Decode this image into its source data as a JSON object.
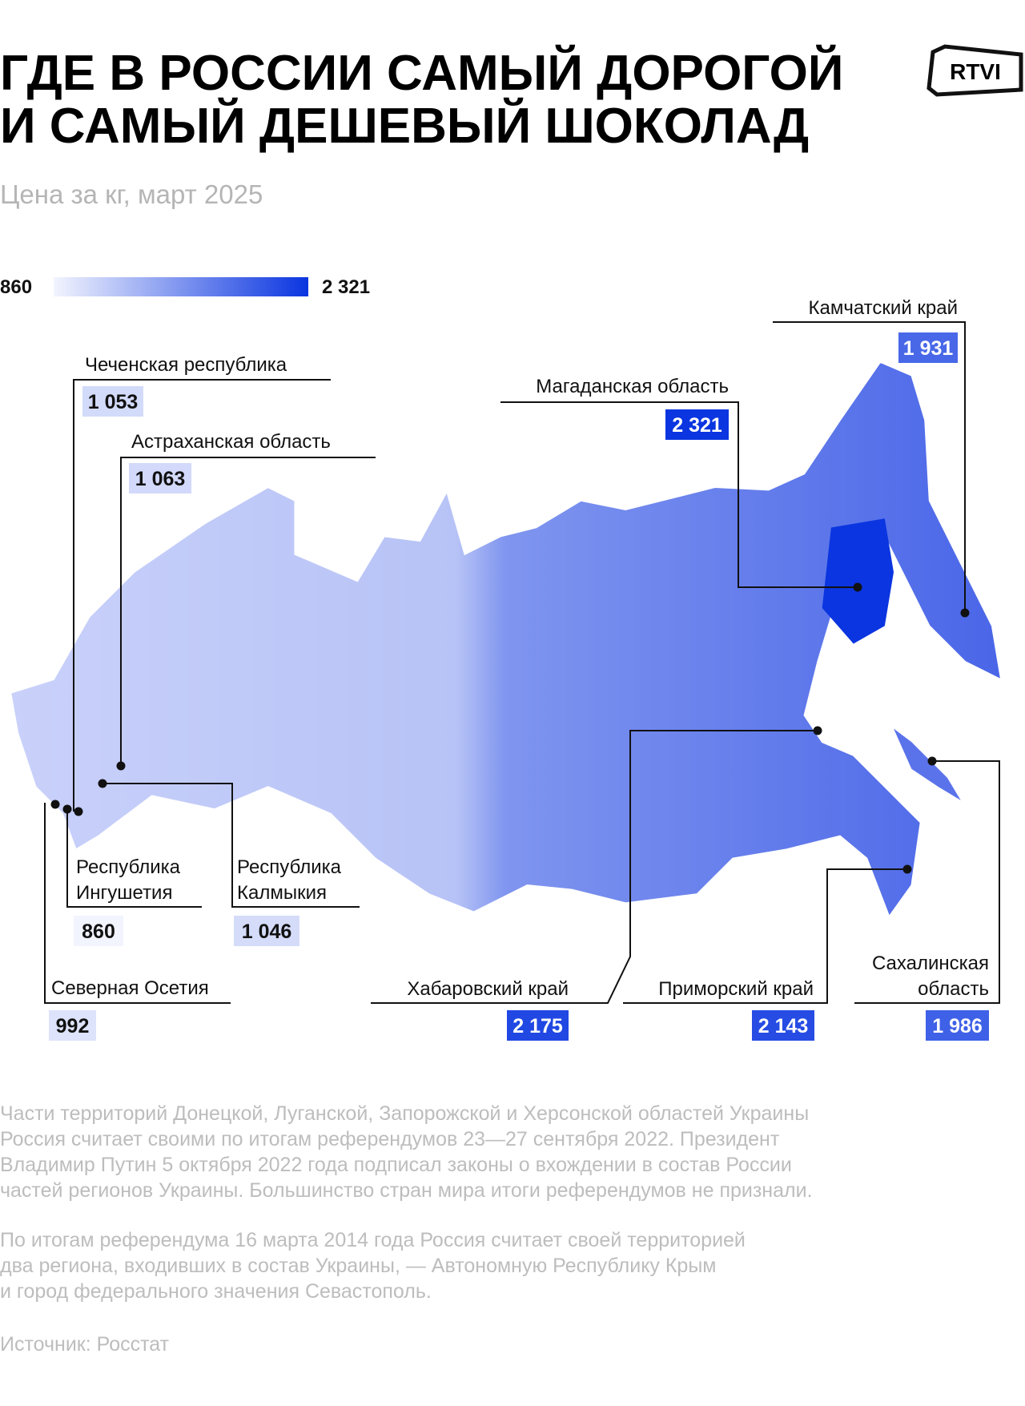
{
  "header": {
    "title": [
      "ГДЕ В РОССИИ САМЫЙ ДОРОГОЙ",
      "И САМЫЙ ДЕШЕВЫЙ ШОКОЛАД"
    ],
    "subtitle": "Цена за кг, март 2025",
    "logo": "RTVI"
  },
  "legend": {
    "min": 860,
    "max": {
      "value": 2321,
      "label": "2 321"
    },
    "colors": [
      "#f2f4fe",
      "#0a35e0"
    ]
  },
  "regions": [
    {
      "name": [
        "Камчатский край"
      ],
      "value": 1931,
      "value_label": "1 931"
    },
    {
      "name": [
        "Магаданская область"
      ],
      "value": 2321,
      "value_label": "2 321"
    },
    {
      "name": [
        "Чеченская республика"
      ],
      "value": 1053,
      "value_label": "1 053"
    },
    {
      "name": [
        "Астраханская область"
      ],
      "value": 1063,
      "value_label": "1 063"
    },
    {
      "name": [
        "Республика",
        "Ингушетия"
      ],
      "value": 860,
      "value_label": "860"
    },
    {
      "name": [
        "Республика",
        "Калмыкия"
      ],
      "value": 1046,
      "value_label": "1 046"
    },
    {
      "name": [
        "Северная Осетия"
      ],
      "value": 992,
      "value_label": "992"
    },
    {
      "name": [
        "Хабаровский край"
      ],
      "value": 2175,
      "value_label": "2 175"
    },
    {
      "name": [
        "Приморский край"
      ],
      "value": 2143,
      "value_label": "2 143"
    },
    {
      "name": [
        "Сахалинская",
        "область"
      ],
      "value": 1986,
      "value_label": "1 986"
    }
  ],
  "notes": [
    [
      "Части территорий Донецкой, Луганской, Запорожской и Херсонской областей Украины",
      "Россия считает своими по итогам референдумов 23—27 сентября 2022. Президент",
      "Владимир Путин 5 октября 2022 года подписал законы о вхождении в состав России",
      "частей регионов  Украины. Большинство стран мира итоги референдумов не признали."
    ],
    [
      "По итогам референдума 16 марта 2014 года Россия считает своей территорией",
      "два региона, входивших в состав Украины, — Автономную Республику Крым",
      "и город федерального значения Севастополь."
    ]
  ],
  "source": "Источник: Росстат"
}
